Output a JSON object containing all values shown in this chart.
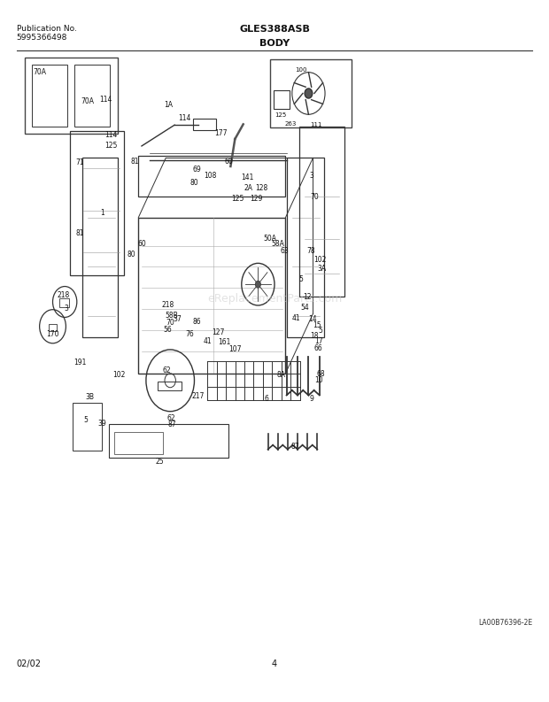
{
  "bg_color": "#ffffff",
  "title_model": "GLES388ASB",
  "title_section": "BODY",
  "pub_label": "Publication No.",
  "pub_number": "5995366498",
  "date_label": "02/02",
  "page_number": "4",
  "watermark": "eReplacementParts.com",
  "diagram_code": "LA00B76396-2E",
  "fig_width": 6.2,
  "fig_height": 7.93
}
